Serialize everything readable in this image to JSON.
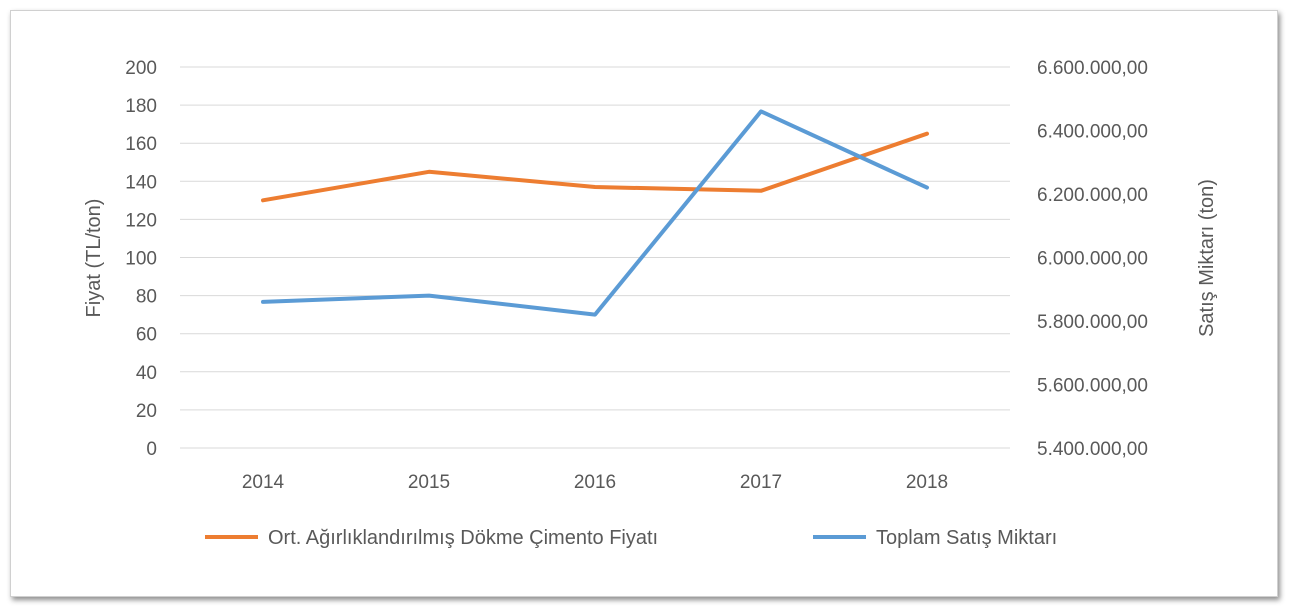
{
  "chart_data": {
    "type": "line",
    "title": "",
    "categories": [
      "2014",
      "2015",
      "2016",
      "2017",
      "2018"
    ],
    "y_left": {
      "label": "Fiyat (TL/ton)",
      "ylim": [
        0,
        200
      ],
      "ticks": [
        "200",
        "180",
        "160",
        "140",
        "120",
        "100",
        "80",
        "60",
        "40",
        "20",
        "0"
      ]
    },
    "y_right": {
      "label": "Satış Miktarı (ton)",
      "ylim": [
        5400000,
        6600000
      ],
      "ticks": [
        "6.600.000,00",
        "6.400.000,00",
        "6.200.000,00",
        "6.000.000,00",
        "5.800.000,00",
        "5.600.000,00",
        "5.400.000,00"
      ]
    },
    "grid": true,
    "legend_position": "bottom",
    "series": [
      {
        "name": "Ort. Ağırlıklandırılmış Dökme Çimento Fiyatı",
        "axis": "left",
        "color": "#ED7D31",
        "values": [
          130,
          145,
          137,
          135,
          165
        ]
      },
      {
        "name": "Toplam Satış Miktarı",
        "axis": "right",
        "color": "#5B9BD5",
        "values": [
          5860000,
          5880000,
          5820000,
          6460000,
          6220000
        ]
      }
    ]
  }
}
